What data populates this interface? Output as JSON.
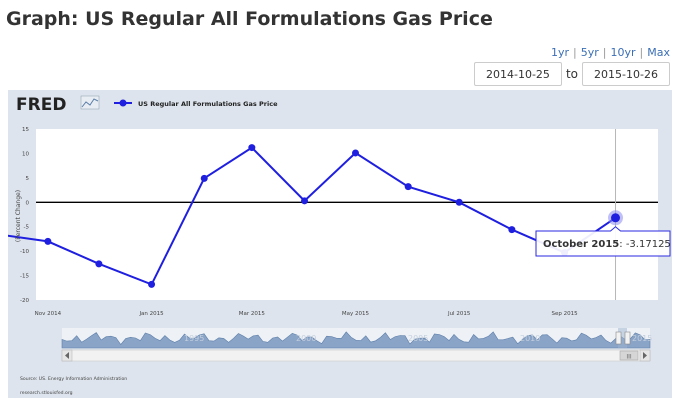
{
  "page": {
    "title": "Graph: US Regular All Formulations Gas Price"
  },
  "range_links": [
    "1yr",
    "5yr",
    "10yr",
    "Max"
  ],
  "date_range": {
    "start": "2014-10-25",
    "to_label": "to",
    "end": "2015-10-26"
  },
  "fred_logo": "FRED",
  "source": "Source: US. Energy Information Administration",
  "site": "research.stlouisfed.org",
  "tooltip": {
    "label": "October 2015",
    "value": "-3.17125"
  },
  "navigator_years": [
    "1995",
    "2000",
    "2005",
    "2010",
    "2015"
  ],
  "colors": {
    "series": "#1f1fe0",
    "background": "#dde4ed",
    "navigator": "#8aa4c8"
  },
  "chart_data": {
    "type": "line",
    "title": "",
    "xlabel": "",
    "ylabel": "(Percent Change)",
    "ylim": [
      -20,
      15
    ],
    "yticks": [
      15,
      10,
      5,
      0,
      -5,
      -10,
      -15,
      -20
    ],
    "xticks": [
      {
        "date": "2014-11-01",
        "label": "Nov 2014"
      },
      {
        "date": "2015-01-01",
        "label": "Jan 2015"
      },
      {
        "date": "2015-03-01",
        "label": "Mar 2015"
      },
      {
        "date": "2015-05-01",
        "label": "May 2015"
      },
      {
        "date": "2015-07-01",
        "label": "Jul 2015"
      },
      {
        "date": "2015-09-01",
        "label": "Sep 2015"
      }
    ],
    "xlim": [
      "2014-10-25",
      "2015-10-26"
    ],
    "grid": false,
    "legend": "top-left",
    "series": [
      {
        "name": "US Regular All Formulations Gas Price",
        "x": [
          "2014-10-01",
          "2014-11-01",
          "2014-12-01",
          "2015-01-01",
          "2015-02-01",
          "2015-03-01",
          "2015-04-01",
          "2015-05-01",
          "2015-06-01",
          "2015-07-01",
          "2015-08-01",
          "2015-09-01",
          "2015-10-01"
        ],
        "values": [
          -6.5,
          -8.0,
          -12.6,
          -16.8,
          4.9,
          11.2,
          0.3,
          10.1,
          3.2,
          0.0,
          -5.6,
          -10.3,
          -3.17125
        ]
      }
    ]
  }
}
